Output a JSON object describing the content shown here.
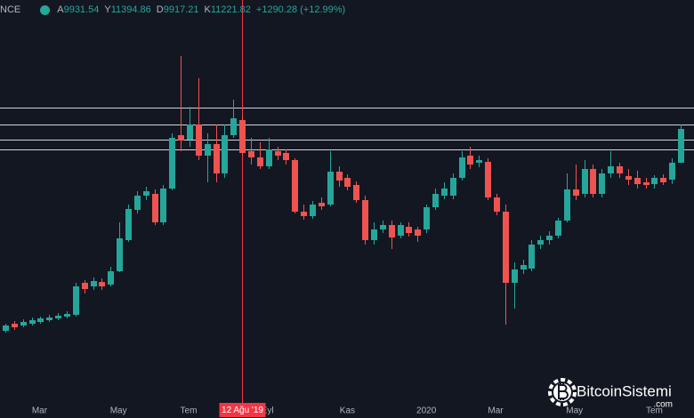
{
  "chart_data": {
    "type": "candlestick",
    "exchange_label": "NCE",
    "ohlc_letters": [
      "A",
      "Y",
      "D",
      "K"
    ],
    "change": "+1290.28 (+12.99%)",
    "categories": [
      null,
      null,
      null,
      null,
      null,
      null,
      null,
      null,
      null,
      null,
      null,
      null,
      null,
      null,
      null,
      null,
      null,
      null,
      null,
      null,
      null,
      null,
      null,
      null,
      null,
      null,
      null,
      null,
      null,
      null,
      null,
      null,
      null,
      null,
      null,
      null,
      null,
      null,
      null,
      null,
      null,
      null,
      null,
      null,
      null,
      null,
      null,
      null,
      null,
      null,
      null,
      null,
      null,
      null,
      null,
      null,
      null,
      null,
      null,
      null,
      null,
      null,
      null,
      null,
      null,
      null,
      null,
      null,
      null,
      null,
      null,
      null,
      null,
      null,
      null,
      null,
      null,
      null
    ],
    "open": [
      3504,
      3776,
      3708,
      3776,
      3844,
      3912,
      3980,
      4048,
      4116,
      5340,
      5204,
      5374,
      5272,
      5782,
      6972,
      8128,
      8672,
      8740,
      7652,
      8944,
      10984,
      10814,
      11392,
      10202,
      10644,
      9522,
      10984,
      11562,
      10372,
      10134,
      9794,
      10372,
      10304,
      10032,
      8060,
      7890,
      8400,
      8332,
      9590,
      9352,
      9080,
      8502,
      6972,
      7380,
      7550,
      7142,
      7482,
      7380,
      7380,
      8230,
      8672,
      8672,
      9352,
      10202,
      9930,
      9964,
      8604,
      8060,
      5340,
      5850,
      5884,
      6802,
      6972,
      7142,
      7720,
      8910,
      8740,
      9692,
      8740,
      9522,
      9794,
      9420,
      9352,
      9182,
      9114,
      9352,
      9284,
      9931.54
    ],
    "high": [
      3776,
      3878,
      3946,
      4014,
      4048,
      4116,
      4184,
      4252,
      5340,
      5442,
      5544,
      5510,
      5952,
      7652,
      8332,
      8842,
      9012,
      8910,
      9080,
      11052,
      14010,
      12072,
      13160,
      11052,
      11392,
      11392,
      12344,
      11732,
      10882,
      10712,
      10882,
      10542,
      10440,
      10100,
      8332,
      8468,
      8604,
      10372,
      9794,
      9488,
      9216,
      8672,
      7652,
      7720,
      7720,
      7652,
      7652,
      7482,
      8332,
      8944,
      9182,
      9522,
      10372,
      10542,
      10202,
      10100,
      8740,
      8332,
      6122,
      6224,
      6972,
      7142,
      7312,
      7822,
      9522,
      9862,
      10032,
      9862,
      9692,
      10372,
      9930,
      9692,
      9624,
      9352,
      9454,
      9488,
      10100,
      11394.86
    ],
    "low": [
      3436,
      3538,
      3640,
      3708,
      3776,
      3844,
      3912,
      3980,
      4048,
      4932,
      5068,
      5068,
      5204,
      5748,
      6904,
      7992,
      8502,
      7550,
      7550,
      8876,
      10372,
      10542,
      10032,
      9182,
      9182,
      9352,
      10882,
      10202,
      9862,
      9692,
      9692,
      10032,
      9862,
      7992,
      7754,
      7788,
      8128,
      8264,
      9012,
      8876,
      8400,
      6802,
      6802,
      7244,
      6632,
      7040,
      7108,
      6904,
      7244,
      8128,
      8536,
      8536,
      9250,
      9692,
      9760,
      8502,
      7924,
      3742,
      4352,
      5680,
      5782,
      6632,
      6802,
      7040,
      7652,
      8502,
      8604,
      8604,
      8604,
      9352,
      9352,
      9080,
      8944,
      8944,
      8942,
      9080,
      9112,
      9917.21
    ],
    "close": [
      3708,
      3640,
      3844,
      3912,
      3980,
      4014,
      4082,
      4150,
      5204,
      5102,
      5408,
      5204,
      5782,
      7040,
      8162,
      8672,
      8842,
      7652,
      8944,
      10882,
      10780,
      11392,
      10202,
      10644,
      9522,
      10984,
      11630,
      10304,
      10134,
      9794,
      10440,
      10202,
      10032,
      8060,
      7890,
      8332,
      8264,
      9590,
      9250,
      9012,
      8502,
      6972,
      7380,
      7550,
      7074,
      7550,
      7244,
      7142,
      8230,
      8740,
      8944,
      9352,
      10134,
      9862,
      10032,
      8604,
      8060,
      5340,
      5850,
      6020,
      6802,
      6972,
      7142,
      7720,
      8910,
      8672,
      9692,
      8740,
      9522,
      9794,
      9522,
      9284,
      9114,
      9080,
      9352,
      9182,
      9930,
      11221.82
    ],
    "up_color": "#26a69a",
    "down_color": "#ef5350",
    "ylim": [
      682,
      16152
    ],
    "xticks": [
      {
        "value": 3.9,
        "label": "Mar"
      },
      {
        "value": 12.9,
        "label": "May"
      },
      {
        "value": 20.9,
        "label": "Tem"
      },
      {
        "value": 29.9,
        "label": "Eyl"
      },
      {
        "value": 39,
        "label": "Kas"
      },
      {
        "value": 48,
        "label": "2020"
      },
      {
        "value": 55.9,
        "label": "Mar"
      },
      {
        "value": 64.9,
        "label": "May"
      },
      {
        "value": 74,
        "label": "Tem"
      }
    ],
    "hlines": [
      12038,
      11392,
      10814,
      10440
    ],
    "hline_color": "#d1d4dc",
    "crosshair": {
      "index": 27,
      "label": "12 Ağu '19",
      "color": "#f23645"
    }
  },
  "watermark": {
    "name": "BitcoinSistemi",
    "suffix": ".com"
  }
}
